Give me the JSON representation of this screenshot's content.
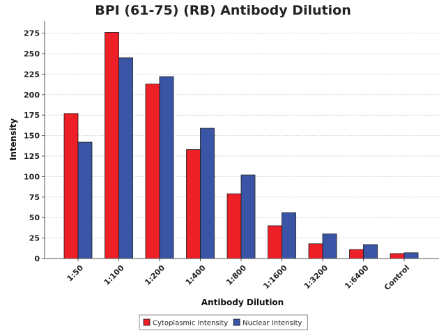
{
  "chart_data": {
    "type": "bar",
    "title": "BPI (61-75) (RB) Antibody Dilution",
    "xlabel": "Antibody Dilution",
    "ylabel": "Intensity",
    "categories": [
      "1:50",
      "1:100",
      "1:200",
      "1:400",
      "1:800",
      "1:1600",
      "1:3200",
      "1:6400",
      "Control"
    ],
    "series": [
      {
        "name": "Cytoplasmic Intensity",
        "color": "#ee2027",
        "values": [
          177,
          276,
          213,
          133,
          79,
          40,
          18,
          11,
          6
        ]
      },
      {
        "name": "Nuclear Intensity",
        "color": "#3a55a5",
        "values": [
          142,
          245,
          222,
          159,
          102,
          56,
          30,
          17,
          7
        ]
      }
    ],
    "yticks": [
      0,
      25,
      50,
      75,
      100,
      125,
      150,
      175,
      200,
      225,
      250,
      275
    ],
    "ylim": [
      0,
      290
    ],
    "grid": true,
    "legend": "bottom-center"
  }
}
